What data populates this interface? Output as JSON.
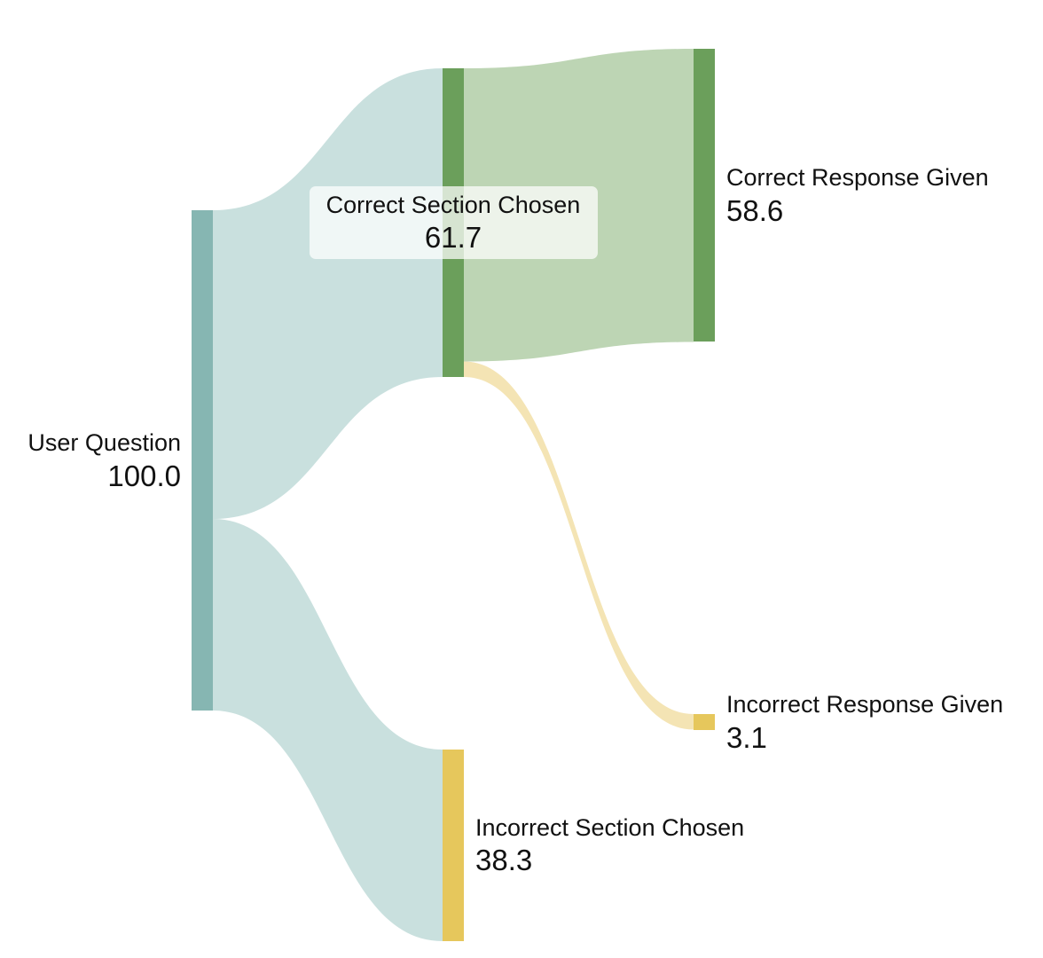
{
  "chart_data": {
    "type": "sankey",
    "nodes": [
      {
        "id": "user_question",
        "name": "User Question",
        "value": "100.0",
        "color": "#86b6b2"
      },
      {
        "id": "correct_section",
        "name": "Correct Section Chosen",
        "value": "61.7",
        "color": "#6b9f5b"
      },
      {
        "id": "incorrect_section",
        "name": "Incorrect Section Chosen",
        "value": "38.3",
        "color": "#e6c75c"
      },
      {
        "id": "correct_response",
        "name": "Correct Response Given",
        "value": "58.6",
        "color": "#6b9f5b"
      },
      {
        "id": "incorrect_response",
        "name": "Incorrect Response Given",
        "value": "3.1",
        "color": "#e6c75c"
      }
    ],
    "links": [
      {
        "source": "user_question",
        "target": "correct_section",
        "value": 61.7,
        "color": "#c9e0de"
      },
      {
        "source": "user_question",
        "target": "incorrect_section",
        "value": 38.3,
        "color": "#c9e0de"
      },
      {
        "source": "correct_section",
        "target": "correct_response",
        "value": 58.6,
        "color": "#bdd5b4"
      },
      {
        "source": "correct_section",
        "target": "incorrect_response",
        "value": 3.1,
        "color": "#f4e4b4"
      }
    ]
  }
}
